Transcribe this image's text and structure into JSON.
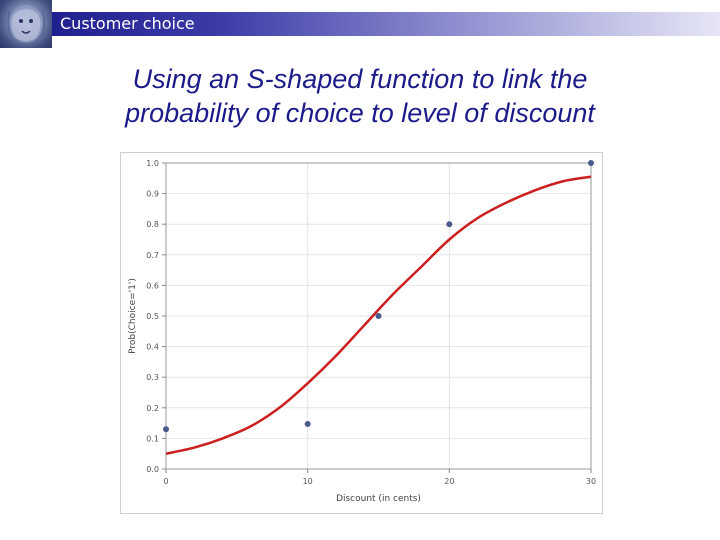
{
  "header": {
    "title": "Customer choice",
    "colors": {
      "bar_dark": "#1f1f8f",
      "bar_light": "#e6e6f6",
      "text": "#ffffff"
    }
  },
  "slide": {
    "title_line1": "Using an S-shaped function to link the",
    "title_line2": "probability of choice to level of discount",
    "title_color": "#1b1b8a"
  },
  "chart_data": {
    "type": "scatter",
    "xlabel": "Discount (in cents)",
    "ylabel": "Prob(Choice='1')",
    "xlim": [
      0,
      30
    ],
    "ylim": [
      0.0,
      1.0
    ],
    "x_ticks": [
      0,
      10,
      20,
      30
    ],
    "y_ticks": [
      0.0,
      0.1,
      0.2,
      0.3,
      0.4,
      0.5,
      0.6,
      0.7,
      0.8,
      0.9,
      1.0
    ],
    "grid": true,
    "legend": "none",
    "series": [
      {
        "kind": "points",
        "color": "#4a5a8a",
        "x": [
          0,
          10,
          15,
          20,
          30
        ],
        "y": [
          0.13,
          0.147,
          0.5,
          0.8,
          1.0
        ]
      },
      {
        "kind": "fitted-curve",
        "color": "#cc1f1f",
        "x": [
          0,
          2,
          4,
          6,
          8,
          10,
          12,
          14,
          16,
          18,
          20,
          22,
          24,
          26,
          28,
          30
        ],
        "y": [
          0.05,
          0.07,
          0.1,
          0.14,
          0.2,
          0.28,
          0.37,
          0.47,
          0.57,
          0.66,
          0.75,
          0.82,
          0.87,
          0.91,
          0.94,
          0.955
        ]
      }
    ]
  }
}
